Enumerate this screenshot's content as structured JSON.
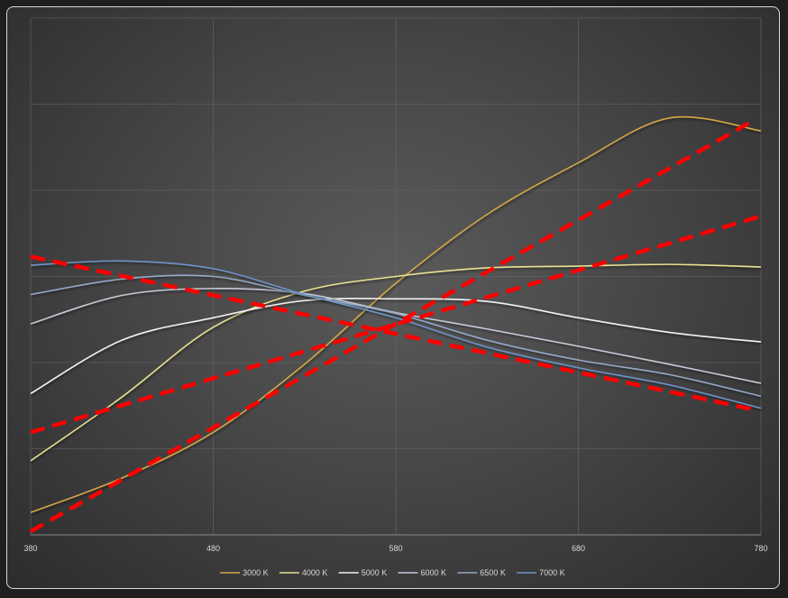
{
  "chart_data": {
    "type": "line",
    "title": "",
    "xlabel": "",
    "ylabel": "",
    "xlim": [
      380,
      780
    ],
    "ylim": [
      0,
      6
    ],
    "x_ticks": [
      "380",
      "480",
      "580",
      "680",
      "780"
    ],
    "y_gridlines": [
      0,
      1,
      2,
      3,
      4,
      5,
      6
    ],
    "grid": true,
    "legend_position": "bottom",
    "series": [
      {
        "name": "3000 K",
        "color": "#d4a646",
        "x": [
          380,
          430,
          480,
          530,
          580,
          630,
          680,
          730,
          780
        ],
        "y": [
          0.26,
          0.66,
          1.19,
          1.98,
          2.92,
          3.72,
          4.32,
          4.84,
          4.69
        ]
      },
      {
        "name": "4000 K",
        "color": "#e8e090",
        "x": [
          380,
          430,
          480,
          530,
          580,
          630,
          680,
          730,
          780
        ],
        "y": [
          0.86,
          1.6,
          2.41,
          2.83,
          3.0,
          3.1,
          3.12,
          3.14,
          3.11
        ]
      },
      {
        "name": "5000 K",
        "color": "#f2f2f2",
        "x": [
          380,
          430,
          480,
          530,
          580,
          630,
          680,
          730,
          780
        ],
        "y": [
          1.64,
          2.26,
          2.52,
          2.72,
          2.74,
          2.71,
          2.52,
          2.35,
          2.24
        ]
      },
      {
        "name": "6000 K",
        "color": "#c2cad6",
        "x": [
          380,
          430,
          480,
          530,
          580,
          630,
          680,
          730,
          780
        ],
        "y": [
          2.45,
          2.78,
          2.86,
          2.8,
          2.58,
          2.39,
          2.19,
          1.98,
          1.76
        ]
      },
      {
        "name": "6500 K",
        "color": "#93a8c6",
        "x": [
          380,
          430,
          480,
          530,
          580,
          630,
          680,
          730,
          780
        ],
        "y": [
          2.79,
          2.97,
          3.0,
          2.78,
          2.57,
          2.26,
          2.03,
          1.86,
          1.61
        ]
      },
      {
        "name": "7000 K",
        "color": "#6d93c8",
        "x": [
          380,
          430,
          480,
          530,
          580,
          630,
          680,
          730,
          780
        ],
        "y": [
          3.13,
          3.18,
          3.09,
          2.79,
          2.52,
          2.18,
          1.94,
          1.74,
          1.47
        ]
      }
    ],
    "overlay_lines": [
      {
        "color": "#ff0000",
        "style": "dashed",
        "x": [
          380,
          775
        ],
        "y": [
          0.04,
          4.8
        ]
      },
      {
        "color": "#ff0000",
        "style": "dashed",
        "x": [
          380,
          780
        ],
        "y": [
          1.19,
          3.7
        ]
      },
      {
        "color": "#ff0000",
        "style": "dashed",
        "x": [
          380,
          775
        ],
        "y": [
          3.23,
          1.46
        ]
      }
    ]
  }
}
